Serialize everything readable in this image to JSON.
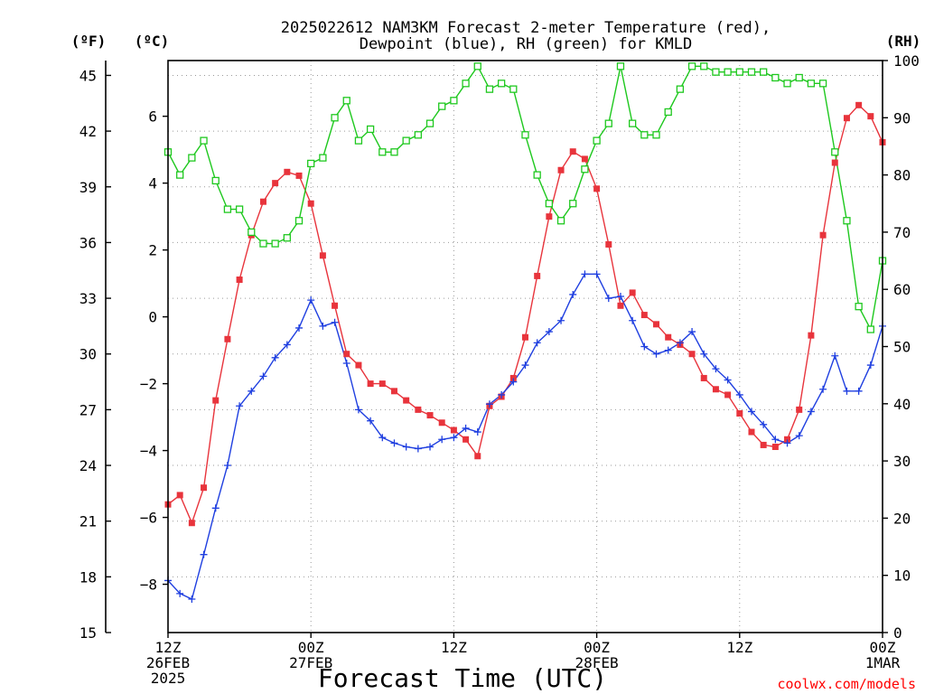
{
  "chart_data": {
    "type": "line",
    "title": "2025022612 NAM3KM Forecast 2-meter Temperature (red),\nDewpoint (blue), RH (green) for KMLD",
    "xlabel": "Forecast Time (UTC)",
    "left_unit_f": "(ºF)",
    "left_unit_c": "(ºC)",
    "right_unit": "(RH)",
    "credit": "coolwx.com/models",
    "x_ticks": [
      {
        "hour": 0,
        "lines": [
          "12Z",
          "26FEB",
          "2025"
        ]
      },
      {
        "hour": 12,
        "lines": [
          "00Z",
          "27FEB"
        ]
      },
      {
        "hour": 24,
        "lines": [
          "12Z"
        ]
      },
      {
        "hour": 36,
        "lines": [
          "00Z",
          "28FEB"
        ]
      },
      {
        "hour": 48,
        "lines": [
          "12Z"
        ]
      },
      {
        "hour": 60,
        "lines": [
          "00Z",
          "1MAR"
        ]
      }
    ],
    "xlim": [
      0,
      60
    ],
    "f_ticks": [
      15,
      18,
      21,
      24,
      27,
      30,
      33,
      36,
      39,
      42,
      45
    ],
    "f_lim": [
      15,
      45.8
    ],
    "c_ticks": [
      -8,
      -6,
      -4,
      -2,
      0,
      2,
      4,
      6
    ],
    "rh_ticks": [
      0,
      10,
      20,
      30,
      40,
      50,
      60,
      70,
      80,
      90,
      100
    ],
    "rh_lim": [
      0,
      100
    ],
    "grid": true,
    "series": [
      {
        "id": "temperature",
        "units": "°F",
        "color": "#e8343c",
        "marker": "filled-square",
        "x": [
          0,
          1,
          2,
          3,
          4,
          5,
          6,
          7,
          8,
          9,
          10,
          11,
          12,
          13,
          14,
          15,
          16,
          17,
          18,
          19,
          20,
          21,
          22,
          23,
          24,
          25,
          26,
          27,
          28,
          29,
          30,
          31,
          32,
          33,
          34,
          35,
          36,
          37,
          38,
          39,
          40,
          41,
          42,
          43,
          44,
          45,
          46,
          47,
          48,
          49,
          50,
          51,
          52,
          53,
          54,
          55,
          56,
          57,
          58,
          59,
          60
        ],
        "y": [
          21.9,
          22.4,
          20.9,
          22.8,
          27.5,
          30.8,
          34.0,
          36.4,
          38.2,
          39.2,
          39.8,
          39.6,
          38.1,
          35.3,
          32.6,
          30.0,
          29.4,
          28.4,
          28.4,
          28.0,
          27.5,
          27.0,
          26.7,
          26.3,
          25.9,
          25.4,
          24.5,
          27.2,
          27.7,
          28.7,
          30.9,
          34.2,
          37.4,
          39.9,
          40.9,
          40.5,
          38.9,
          35.9,
          32.6,
          33.3,
          32.1,
          31.6,
          30.9,
          30.5,
          30.0,
          28.7,
          28.1,
          27.8,
          26.8,
          25.8,
          25.1,
          25.0,
          25.4,
          27.0,
          31.0,
          36.4,
          40.3,
          42.7,
          43.4,
          42.8,
          41.4
        ]
      },
      {
        "id": "dewpoint",
        "units": "°F",
        "color": "#1f3fe0",
        "marker": "plus",
        "x": [
          0,
          1,
          2,
          3,
          4,
          5,
          6,
          7,
          8,
          9,
          10,
          11,
          12,
          13,
          14,
          15,
          16,
          17,
          18,
          19,
          20,
          21,
          22,
          23,
          24,
          25,
          26,
          27,
          28,
          29,
          30,
          31,
          32,
          33,
          34,
          35,
          36,
          37,
          38,
          39,
          40,
          41,
          42,
          43,
          44,
          45,
          46,
          47,
          48,
          49,
          50,
          51,
          52,
          53,
          54,
          55,
          56,
          57,
          58,
          59,
          60
        ],
        "y": [
          17.8,
          17.1,
          16.8,
          19.2,
          21.7,
          24.0,
          27.2,
          28.0,
          28.8,
          29.8,
          30.5,
          31.4,
          32.9,
          31.5,
          31.7,
          29.5,
          27.0,
          26.4,
          25.5,
          25.2,
          25.0,
          24.9,
          25.0,
          25.4,
          25.5,
          26.0,
          25.8,
          27.3,
          27.8,
          28.5,
          29.4,
          30.6,
          31.2,
          31.8,
          33.2,
          34.3,
          34.3,
          33.0,
          33.1,
          31.8,
          30.4,
          30.0,
          30.2,
          30.6,
          31.2,
          30.0,
          29.2,
          28.6,
          27.8,
          26.9,
          26.2,
          25.4,
          25.2,
          25.6,
          26.9,
          28.1,
          29.9,
          28.0,
          28.0,
          29.4,
          31.5
        ]
      },
      {
        "id": "rh",
        "units": "%",
        "color": "#1ec81e",
        "marker": "open-square",
        "axis": "right",
        "x": [
          0,
          1,
          2,
          3,
          4,
          5,
          6,
          7,
          8,
          9,
          10,
          11,
          12,
          13,
          14,
          15,
          16,
          17,
          18,
          19,
          20,
          21,
          22,
          23,
          24,
          25,
          26,
          27,
          28,
          29,
          30,
          31,
          32,
          33,
          34,
          35,
          36,
          37,
          38,
          39,
          40,
          41,
          42,
          43,
          44,
          45,
          46,
          47,
          48,
          49,
          50,
          51,
          52,
          53,
          54,
          55,
          56,
          57,
          58,
          59,
          60
        ],
        "y": [
          84,
          80,
          83,
          86,
          79,
          74,
          74,
          70,
          68,
          68,
          69,
          72,
          82,
          83,
          90,
          93,
          86,
          88,
          84,
          84,
          86,
          87,
          89,
          92,
          93,
          96,
          99,
          95,
          96,
          95,
          87,
          80,
          75,
          72,
          75,
          81,
          86,
          89,
          99,
          89,
          87,
          87,
          91,
          95,
          99,
          99,
          98,
          98,
          98,
          98,
          98,
          97,
          96,
          97,
          96,
          96,
          84,
          72,
          57,
          53,
          65
        ]
      }
    ]
  }
}
